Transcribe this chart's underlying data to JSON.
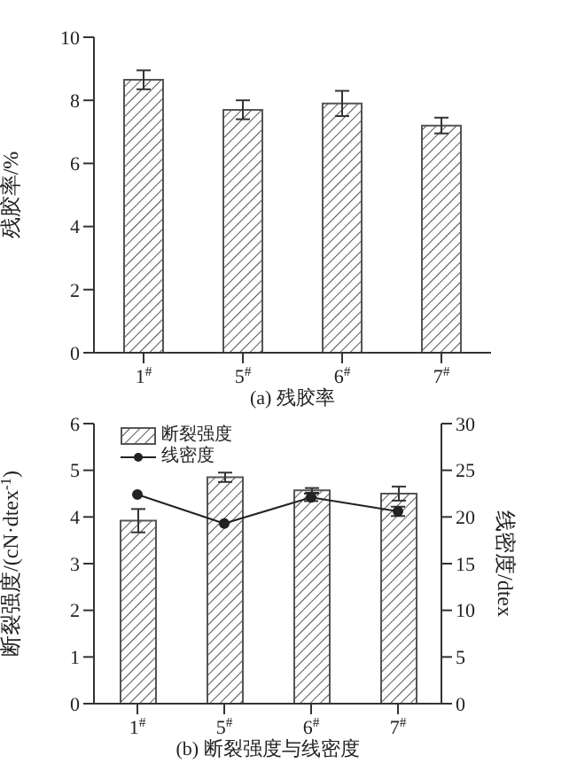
{
  "chart_data": [
    {
      "type": "bar",
      "title": "(a) 残胶率",
      "ylabel": "残胶率/%",
      "categories": [
        "1$^{#}$",
        "5$^{#}$",
        "6$^{#}$",
        "7$^{#}$"
      ],
      "values": [
        8.65,
        7.7,
        7.9,
        7.2
      ],
      "errors": [
        0.3,
        0.3,
        0.4,
        0.25
      ],
      "color": "#555555",
      "ylim": [
        0,
        10
      ],
      "yticks": [
        0,
        2,
        4,
        6,
        8,
        10
      ],
      "grid": false,
      "legend": false
    },
    {
      "type": "bar",
      "title": "(b) 断裂强度与线密度",
      "ylabel": "断裂强度/(cN·dtex$^{-1}$)",
      "y2label": "线密度/dtex",
      "categories": [
        "1$^{#}$",
        "5$^{#}$",
        "6$^{#}$",
        "7$^{#}$"
      ],
      "series": [
        {
          "name": "断裂强度",
          "color": "#555555",
          "values": [
            3.92,
            4.85,
            4.57,
            4.5
          ],
          "errors": [
            0.25,
            0.1,
            0.05,
            0.15
          ]
        },
        {
          "name": "线密度",
          "type": "line",
          "axis": "y2",
          "color": "#222222",
          "values": [
            22.4,
            19.3,
            22.1,
            20.6
          ],
          "errors": [
            null,
            null,
            0.4,
            0.5
          ]
        }
      ],
      "ylim": [
        0,
        6
      ],
      "yticks": [
        0,
        1,
        2,
        3,
        4,
        5,
        6
      ],
      "y2lim": [
        0,
        30
      ],
      "y2ticks": [
        0,
        5,
        10,
        15,
        20,
        25,
        30
      ],
      "grid": false,
      "legend": "top left",
      "marker": "circle",
      "line_style": "solid"
    }
  ]
}
